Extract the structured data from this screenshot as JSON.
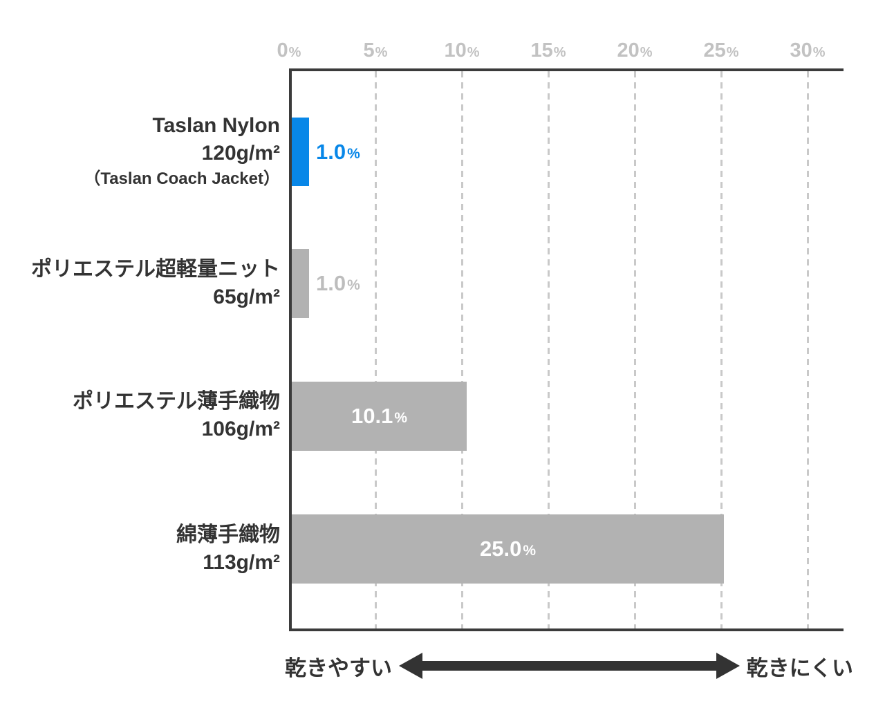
{
  "chart_data": {
    "type": "bar",
    "orientation": "horizontal",
    "title": "",
    "categories": [
      "Taslan Nylon 120g/m² （Taslan Coach Jacket）",
      "ポリエステル超軽量ニット 65g/m²",
      "ポリエステル薄手織物 106g/m²",
      "綿薄手織物 113g/m²"
    ],
    "values": [
      1.0,
      1.0,
      10.1,
      25.0
    ],
    "value_labels": [
      "1.0%",
      "1.0%",
      "10.1%",
      "25.0%"
    ],
    "unit": "%",
    "xlim": [
      0,
      30
    ],
    "x_ticks": [
      0,
      5,
      10,
      15,
      20,
      25,
      30
    ],
    "x_tick_labels": [
      "0%",
      "5%",
      "10%",
      "15%",
      "20%",
      "25%",
      "30%"
    ],
    "grid": "vertical-dashed",
    "legend": "none",
    "highlighted_bar_index": 0,
    "footer_scale": {
      "left": "乾きやすい",
      "right": "乾きにくい"
    }
  },
  "axis": {
    "ticks": [
      {
        "num": "0",
        "unit": "%"
      },
      {
        "num": "5",
        "unit": "%"
      },
      {
        "num": "10",
        "unit": "%"
      },
      {
        "num": "15",
        "unit": "%"
      },
      {
        "num": "20",
        "unit": "%"
      },
      {
        "num": "25",
        "unit": "%"
      },
      {
        "num": "30",
        "unit": "%"
      }
    ]
  },
  "rows": [
    {
      "label_lines": [
        "Taslan Nylon",
        "120g/m²",
        "（Taslan Coach Jacket）"
      ],
      "value": 1.0,
      "value_num": "1.0",
      "value_unit": "%",
      "highlight": true,
      "value_placement": "outside"
    },
    {
      "label_lines": [
        "ポリエステル超軽量ニット",
        "65g/m²"
      ],
      "value": 1.0,
      "value_num": "1.0",
      "value_unit": "%",
      "highlight": false,
      "value_placement": "outside"
    },
    {
      "label_lines": [
        "ポリエステル薄手織物",
        "106g/m²"
      ],
      "value": 10.1,
      "value_num": "10.1",
      "value_unit": "%",
      "highlight": false,
      "value_placement": "inside"
    },
    {
      "label_lines": [
        "綿薄手織物",
        "113g/m²"
      ],
      "value": 25.0,
      "value_num": "25.0",
      "value_unit": "%",
      "highlight": false,
      "value_placement": "inside"
    }
  ],
  "footer": {
    "left_label": "乾きやすい",
    "right_label": "乾きにくい"
  },
  "colors": {
    "accent_blue": "#0887e8",
    "bar_gray": "#b2b2b2",
    "frame_dark": "#3b3b3b",
    "text_dark": "#333333",
    "tick_gray": "#c2c2c2",
    "grid_gray": "#c9c9c9",
    "value_muted": "#bdbdbd",
    "value_light": "#ffffff"
  }
}
